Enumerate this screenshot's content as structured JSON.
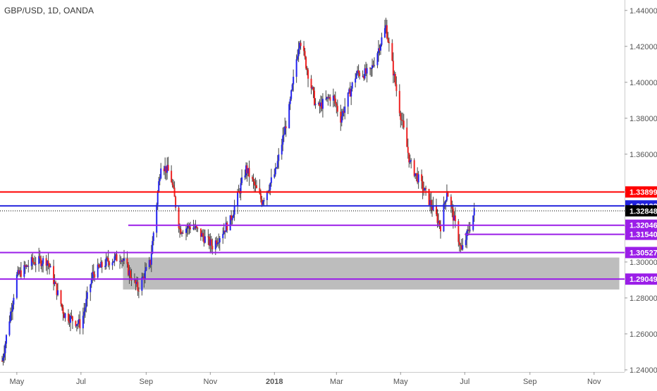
{
  "header": {
    "symbol_title": "GBP/USD, 1D, OANDA"
  },
  "colors": {
    "up_candle": "#2323f0",
    "down_candle": "#ee2222",
    "wick": "#444444",
    "resistance": "#ff0000",
    "level_blue": "#2222dd",
    "level_purple": "#9b1ee8",
    "zone": "#bdbdbd",
    "axis_text": "#555555",
    "grid": "#eeeeee"
  },
  "chart_data": {
    "type": "candlestick",
    "title": "GBP/USD, 1D, OANDA",
    "x_tick_labels": [
      "May",
      "Jul",
      "Sep",
      "Nov",
      "2018",
      "Mar",
      "May",
      "Jul",
      "Sep",
      "Nov"
    ],
    "y_tick_labels": [
      "1.44000",
      "1.42000",
      "1.40000",
      "1.38000",
      "1.36000",
      "1.34000",
      "1.32000",
      "1.30000",
      "1.28000",
      "1.26000",
      "1.24000"
    ],
    "y_ticks": [
      1.44,
      1.42,
      1.4,
      1.38,
      1.36,
      1.34,
      1.32,
      1.3,
      1.28,
      1.26,
      1.24
    ],
    "ylim": [
      1.2388,
      1.4458
    ],
    "x_start": "2017-04-15",
    "x_end": "2018-11-30",
    "grid": false,
    "anchor_closes": [
      [
        "2017-04-17",
        1.245
      ],
      [
        "2017-05-01",
        1.292
      ],
      [
        "2017-05-15",
        1.3
      ],
      [
        "2017-05-30",
        1.301
      ],
      [
        "2017-06-15",
        1.271
      ],
      [
        "2017-07-01",
        1.265
      ],
      [
        "2017-07-12",
        1.293
      ],
      [
        "2017-07-25",
        1.3
      ],
      [
        "2017-08-08",
        1.303
      ],
      [
        "2017-08-24",
        1.285
      ],
      [
        "2017-09-05",
        1.3
      ],
      [
        "2017-09-15",
        1.355
      ],
      [
        "2017-09-24",
        1.349
      ],
      [
        "2017-10-03",
        1.318
      ],
      [
        "2017-10-15",
        1.32
      ],
      [
        "2017-11-03",
        1.309
      ],
      [
        "2017-11-20",
        1.323
      ],
      [
        "2017-12-05",
        1.352
      ],
      [
        "2017-12-20",
        1.334
      ],
      [
        "2018-01-02",
        1.35
      ],
      [
        "2018-01-15",
        1.385
      ],
      [
        "2018-01-25",
        1.425
      ],
      [
        "2018-02-10",
        1.385
      ],
      [
        "2018-02-25",
        1.393
      ],
      [
        "2018-03-05",
        1.38
      ],
      [
        "2018-03-20",
        1.405
      ],
      [
        "2018-04-02",
        1.405
      ],
      [
        "2018-04-17",
        1.431
      ],
      [
        "2018-04-30",
        1.385
      ],
      [
        "2018-05-10",
        1.355
      ],
      [
        "2018-05-25",
        1.338
      ],
      [
        "2018-06-08",
        1.32
      ],
      [
        "2018-06-14",
        1.34
      ],
      [
        "2018-06-28",
        1.306
      ],
      [
        "2018-07-06",
        1.32
      ],
      [
        "2018-07-10",
        1.328
      ]
    ],
    "horizontal_levels": [
      {
        "price": 1.33899,
        "label": "1.33899",
        "style": "solid",
        "color_key": "resistance",
        "start": "2017-04-15"
      },
      {
        "price": 1.33122,
        "label": "1.33122",
        "style": "solid",
        "color_key": "level_blue",
        "start": "2017-04-15"
      },
      {
        "price": 1.32848,
        "label": "1.32848",
        "style": "dotted",
        "color_key": "current",
        "start": "2017-04-15"
      },
      {
        "price": 1.32046,
        "label": "1.32046",
        "style": "solid",
        "color_key": "level_purple",
        "start": "2017-08-15"
      },
      {
        "price": 1.3154,
        "label": "1.31540",
        "style": "solid",
        "color_key": "level_purple",
        "start": "2018-07-01"
      },
      {
        "price": 1.30527,
        "label": "1.30527",
        "style": "solid",
        "color_key": "level_purple",
        "start": "2017-04-15"
      },
      {
        "price": 1.29049,
        "label": "1.29049",
        "style": "solid",
        "color_key": "level_purple",
        "start": "2017-04-15"
      }
    ],
    "zones": [
      {
        "from": "2017-08-10",
        "to": "2018-11-25",
        "low": 1.2847,
        "high": 1.3025
      }
    ]
  }
}
